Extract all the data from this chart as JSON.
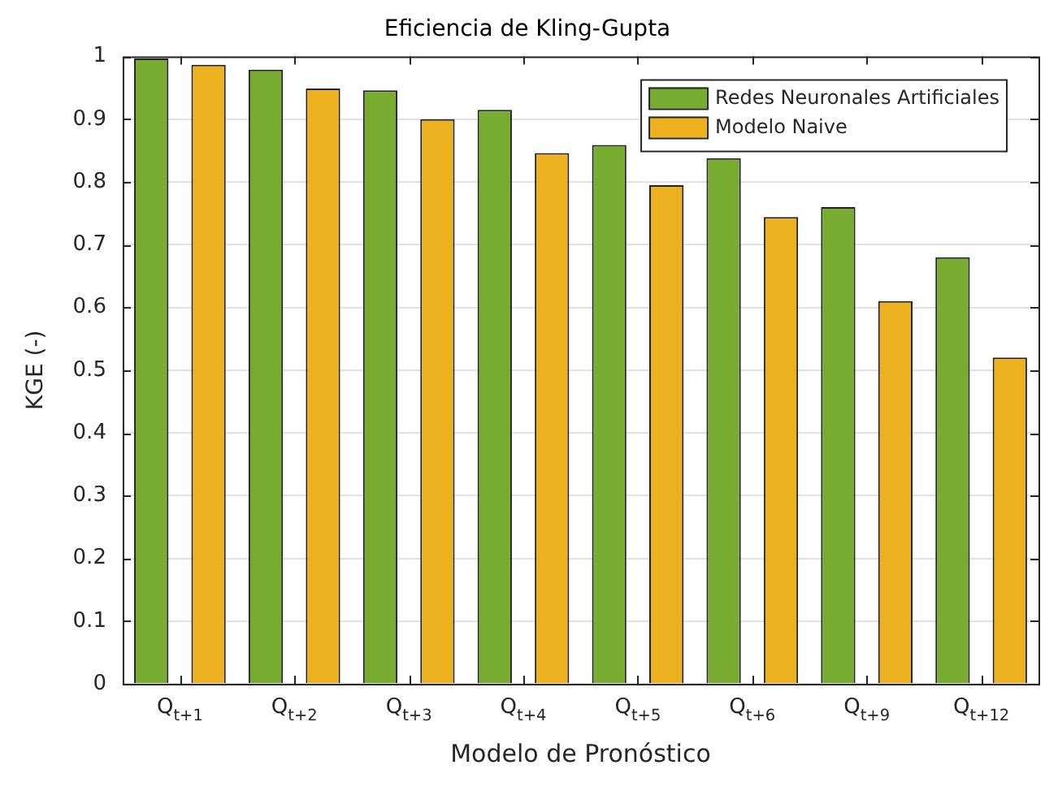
{
  "chart_data": {
    "type": "bar",
    "title": "Eficiencia de Kling-Gupta",
    "xlabel": "Modelo de Pronóstico",
    "ylabel": "KGE (-)",
    "categories": [
      "Q$_{t+1}$",
      "Q$_{t+2}$",
      "Q$_{t+3}$",
      "Q$_{t+4}$",
      "Q$_{t+5}$",
      "Q$_{t+6}$",
      "Q$_{t+9}$",
      "Q$_{t+12}$"
    ],
    "series": [
      {
        "name": "Redes Neuronales Artificiales",
        "color": "#77ac30",
        "values": [
          0.997,
          0.979,
          0.946,
          0.915,
          0.859,
          0.838,
          0.76,
          0.68
        ]
      },
      {
        "name": "Modelo Naive",
        "color": "#edb120",
        "values": [
          0.987,
          0.949,
          0.9,
          0.846,
          0.795,
          0.744,
          0.61,
          0.52
        ]
      }
    ],
    "ylim": [
      0,
      1
    ],
    "yticks": [
      0,
      0.1,
      0.2,
      0.3,
      0.4,
      0.5,
      0.6,
      0.7,
      0.8,
      0.9,
      1
    ],
    "grid": "y",
    "legend": "top right"
  }
}
